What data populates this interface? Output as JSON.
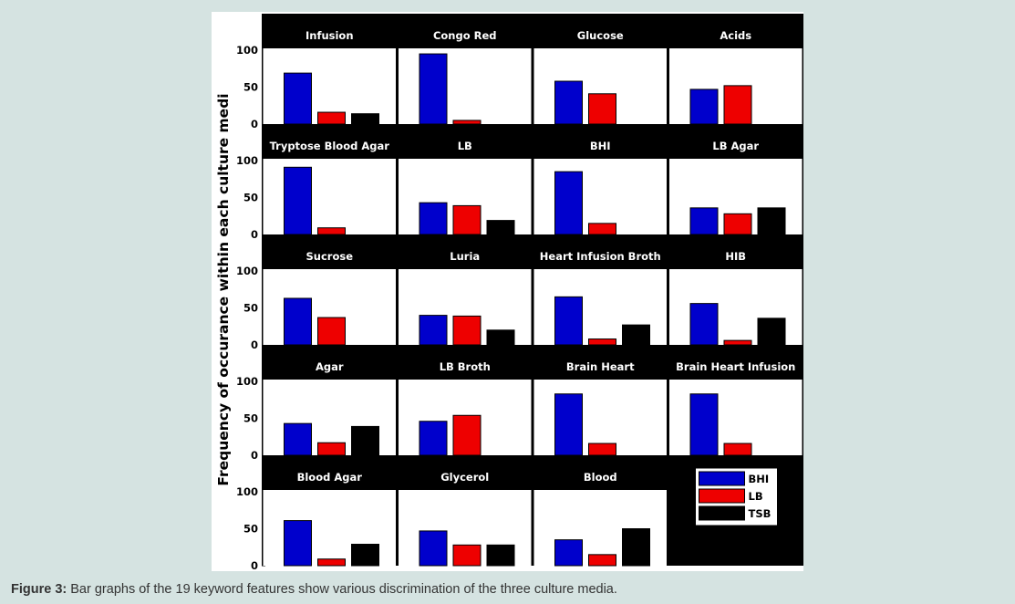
{
  "figure": {
    "ylabel": "Frequency of occurance within each culture medi",
    "caption_label": "Figure 3:",
    "caption_text": " Bar graphs of the 19 keyword features show various discrimination of the three culture media."
  },
  "chart_data": {
    "type": "bar",
    "series_names": [
      "BHI",
      "LB",
      "TSB"
    ],
    "colors": [
      "#0000cc",
      "#ee0000",
      "#000000"
    ],
    "ylim": [
      0,
      100
    ],
    "yticks": [
      0,
      50,
      100
    ],
    "legend_location": "bottom-right",
    "panels": [
      {
        "title": "Infusion",
        "values": [
          69,
          16,
          14
        ]
      },
      {
        "title": "Congo Red",
        "values": [
          95,
          5,
          0
        ]
      },
      {
        "title": "Glucose",
        "values": [
          58,
          41,
          0
        ]
      },
      {
        "title": "Acids",
        "values": [
          47,
          52,
          0
        ]
      },
      {
        "title": "Tryptose Blood Agar",
        "values": [
          91,
          9,
          0
        ]
      },
      {
        "title": "LB",
        "values": [
          43,
          39,
          19
        ]
      },
      {
        "title": "BHI",
        "values": [
          85,
          15,
          0
        ]
      },
      {
        "title": "LB Agar",
        "values": [
          36,
          28,
          36
        ]
      },
      {
        "title": "Sucrose",
        "values": [
          63,
          37,
          0
        ]
      },
      {
        "title": "Luria",
        "values": [
          40,
          39,
          20
        ]
      },
      {
        "title": "Heart Infusion Broth",
        "values": [
          65,
          8,
          27
        ]
      },
      {
        "title": "HIB",
        "values": [
          56,
          6,
          36
        ]
      },
      {
        "title": "Agar",
        "values": [
          43,
          17,
          39
        ]
      },
      {
        "title": "LB Broth",
        "values": [
          46,
          54,
          0
        ]
      },
      {
        "title": "Brain Heart",
        "values": [
          83,
          16,
          0
        ]
      },
      {
        "title": "Brain Heart Infusion",
        "values": [
          83,
          16,
          0
        ]
      },
      {
        "title": "Blood Agar",
        "values": [
          61,
          9,
          29
        ]
      },
      {
        "title": "Glycerol",
        "values": [
          47,
          28,
          28
        ]
      },
      {
        "title": "Blood",
        "values": [
          35,
          15,
          50
        ]
      }
    ]
  }
}
